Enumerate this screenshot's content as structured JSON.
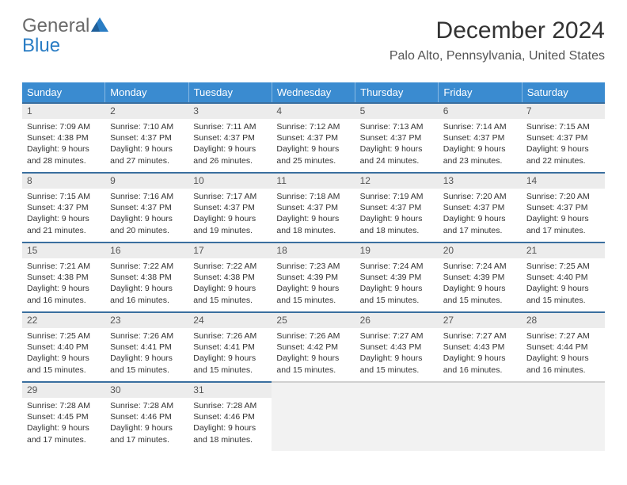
{
  "logo": {
    "line1": "General",
    "line2": "Blue"
  },
  "header": {
    "month_title": "December 2024",
    "location": "Palo Alto, Pennsylvania, United States"
  },
  "colors": {
    "header_bg": "#3a8bd0",
    "cell_border": "#3a6f9f",
    "date_strip_bg": "#ececec",
    "empty_bg": "#f2f2f2",
    "logo_blue": "#2a7dc4",
    "logo_gray": "#6a6a6a"
  },
  "day_headers": [
    "Sunday",
    "Monday",
    "Tuesday",
    "Wednesday",
    "Thursday",
    "Friday",
    "Saturday"
  ],
  "weeks": [
    [
      {
        "date": "1",
        "sunrise": "Sunrise: 7:09 AM",
        "sunset": "Sunset: 4:38 PM",
        "day1": "Daylight: 9 hours",
        "day2": "and 28 minutes."
      },
      {
        "date": "2",
        "sunrise": "Sunrise: 7:10 AM",
        "sunset": "Sunset: 4:37 PM",
        "day1": "Daylight: 9 hours",
        "day2": "and 27 minutes."
      },
      {
        "date": "3",
        "sunrise": "Sunrise: 7:11 AM",
        "sunset": "Sunset: 4:37 PM",
        "day1": "Daylight: 9 hours",
        "day2": "and 26 minutes."
      },
      {
        "date": "4",
        "sunrise": "Sunrise: 7:12 AM",
        "sunset": "Sunset: 4:37 PM",
        "day1": "Daylight: 9 hours",
        "day2": "and 25 minutes."
      },
      {
        "date": "5",
        "sunrise": "Sunrise: 7:13 AM",
        "sunset": "Sunset: 4:37 PM",
        "day1": "Daylight: 9 hours",
        "day2": "and 24 minutes."
      },
      {
        "date": "6",
        "sunrise": "Sunrise: 7:14 AM",
        "sunset": "Sunset: 4:37 PM",
        "day1": "Daylight: 9 hours",
        "day2": "and 23 minutes."
      },
      {
        "date": "7",
        "sunrise": "Sunrise: 7:15 AM",
        "sunset": "Sunset: 4:37 PM",
        "day1": "Daylight: 9 hours",
        "day2": "and 22 minutes."
      }
    ],
    [
      {
        "date": "8",
        "sunrise": "Sunrise: 7:15 AM",
        "sunset": "Sunset: 4:37 PM",
        "day1": "Daylight: 9 hours",
        "day2": "and 21 minutes."
      },
      {
        "date": "9",
        "sunrise": "Sunrise: 7:16 AM",
        "sunset": "Sunset: 4:37 PM",
        "day1": "Daylight: 9 hours",
        "day2": "and 20 minutes."
      },
      {
        "date": "10",
        "sunrise": "Sunrise: 7:17 AM",
        "sunset": "Sunset: 4:37 PM",
        "day1": "Daylight: 9 hours",
        "day2": "and 19 minutes."
      },
      {
        "date": "11",
        "sunrise": "Sunrise: 7:18 AM",
        "sunset": "Sunset: 4:37 PM",
        "day1": "Daylight: 9 hours",
        "day2": "and 18 minutes."
      },
      {
        "date": "12",
        "sunrise": "Sunrise: 7:19 AM",
        "sunset": "Sunset: 4:37 PM",
        "day1": "Daylight: 9 hours",
        "day2": "and 18 minutes."
      },
      {
        "date": "13",
        "sunrise": "Sunrise: 7:20 AM",
        "sunset": "Sunset: 4:37 PM",
        "day1": "Daylight: 9 hours",
        "day2": "and 17 minutes."
      },
      {
        "date": "14",
        "sunrise": "Sunrise: 7:20 AM",
        "sunset": "Sunset: 4:37 PM",
        "day1": "Daylight: 9 hours",
        "day2": "and 17 minutes."
      }
    ],
    [
      {
        "date": "15",
        "sunrise": "Sunrise: 7:21 AM",
        "sunset": "Sunset: 4:38 PM",
        "day1": "Daylight: 9 hours",
        "day2": "and 16 minutes."
      },
      {
        "date": "16",
        "sunrise": "Sunrise: 7:22 AM",
        "sunset": "Sunset: 4:38 PM",
        "day1": "Daylight: 9 hours",
        "day2": "and 16 minutes."
      },
      {
        "date": "17",
        "sunrise": "Sunrise: 7:22 AM",
        "sunset": "Sunset: 4:38 PM",
        "day1": "Daylight: 9 hours",
        "day2": "and 15 minutes."
      },
      {
        "date": "18",
        "sunrise": "Sunrise: 7:23 AM",
        "sunset": "Sunset: 4:39 PM",
        "day1": "Daylight: 9 hours",
        "day2": "and 15 minutes."
      },
      {
        "date": "19",
        "sunrise": "Sunrise: 7:24 AM",
        "sunset": "Sunset: 4:39 PM",
        "day1": "Daylight: 9 hours",
        "day2": "and 15 minutes."
      },
      {
        "date": "20",
        "sunrise": "Sunrise: 7:24 AM",
        "sunset": "Sunset: 4:39 PM",
        "day1": "Daylight: 9 hours",
        "day2": "and 15 minutes."
      },
      {
        "date": "21",
        "sunrise": "Sunrise: 7:25 AM",
        "sunset": "Sunset: 4:40 PM",
        "day1": "Daylight: 9 hours",
        "day2": "and 15 minutes."
      }
    ],
    [
      {
        "date": "22",
        "sunrise": "Sunrise: 7:25 AM",
        "sunset": "Sunset: 4:40 PM",
        "day1": "Daylight: 9 hours",
        "day2": "and 15 minutes."
      },
      {
        "date": "23",
        "sunrise": "Sunrise: 7:26 AM",
        "sunset": "Sunset: 4:41 PM",
        "day1": "Daylight: 9 hours",
        "day2": "and 15 minutes."
      },
      {
        "date": "24",
        "sunrise": "Sunrise: 7:26 AM",
        "sunset": "Sunset: 4:41 PM",
        "day1": "Daylight: 9 hours",
        "day2": "and 15 minutes."
      },
      {
        "date": "25",
        "sunrise": "Sunrise: 7:26 AM",
        "sunset": "Sunset: 4:42 PM",
        "day1": "Daylight: 9 hours",
        "day2": "and 15 minutes."
      },
      {
        "date": "26",
        "sunrise": "Sunrise: 7:27 AM",
        "sunset": "Sunset: 4:43 PM",
        "day1": "Daylight: 9 hours",
        "day2": "and 15 minutes."
      },
      {
        "date": "27",
        "sunrise": "Sunrise: 7:27 AM",
        "sunset": "Sunset: 4:43 PM",
        "day1": "Daylight: 9 hours",
        "day2": "and 16 minutes."
      },
      {
        "date": "28",
        "sunrise": "Sunrise: 7:27 AM",
        "sunset": "Sunset: 4:44 PM",
        "day1": "Daylight: 9 hours",
        "day2": "and 16 minutes."
      }
    ],
    [
      {
        "date": "29",
        "sunrise": "Sunrise: 7:28 AM",
        "sunset": "Sunset: 4:45 PM",
        "day1": "Daylight: 9 hours",
        "day2": "and 17 minutes."
      },
      {
        "date": "30",
        "sunrise": "Sunrise: 7:28 AM",
        "sunset": "Sunset: 4:46 PM",
        "day1": "Daylight: 9 hours",
        "day2": "and 17 minutes."
      },
      {
        "date": "31",
        "sunrise": "Sunrise: 7:28 AM",
        "sunset": "Sunset: 4:46 PM",
        "day1": "Daylight: 9 hours",
        "day2": "and 18 minutes."
      },
      null,
      null,
      null,
      null
    ]
  ]
}
